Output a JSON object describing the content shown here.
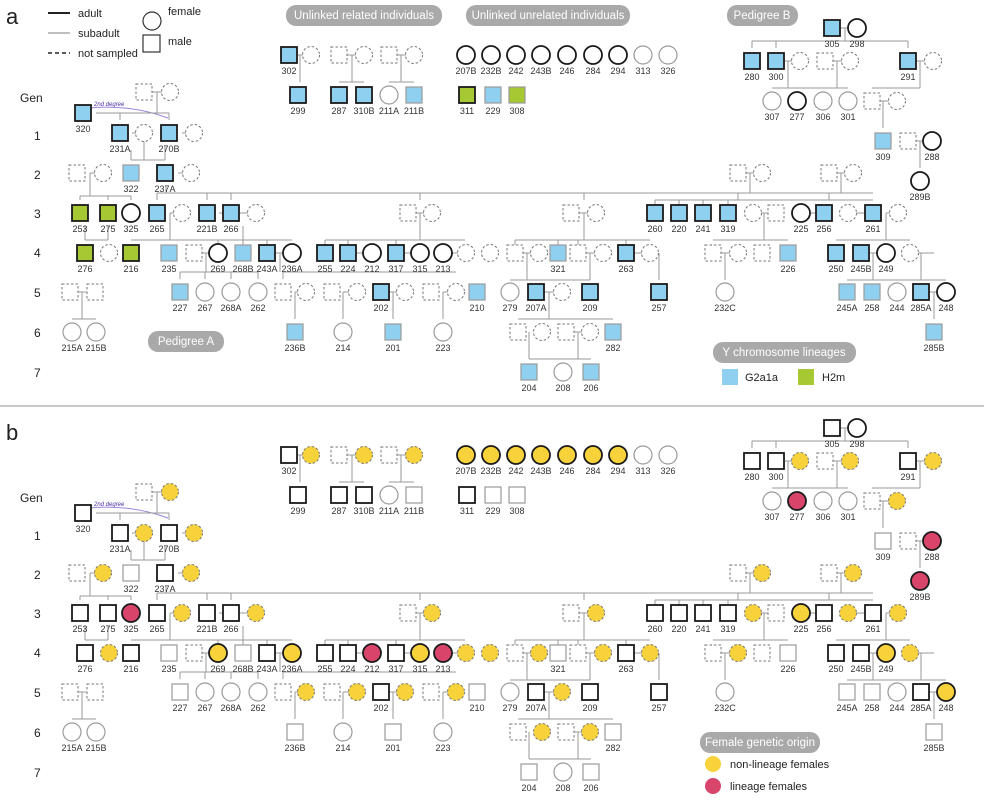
{
  "panels": [
    {
      "letter": "a",
      "legend_lines": [
        {
          "label": "adult"
        },
        {
          "label": "subadult"
        },
        {
          "label": "not sampled"
        }
      ],
      "legend_shapes": [
        {
          "label": "female"
        },
        {
          "label": "male"
        }
      ],
      "group_labels": [
        "Unlinked related individuals",
        "Unlinked unrelated individuals",
        "Pedigree B",
        "Pedigree A"
      ],
      "gen_header": "Gen",
      "gen_numbers": [
        "1",
        "2",
        "3",
        "4",
        "5",
        "6",
        "7"
      ],
      "degree_note": "2nd degree",
      "color_legend_title": "Y chromosome lineages",
      "color_legend": [
        {
          "label": "G2a1a",
          "color": "#8fd0f0"
        },
        {
          "label": "H2m",
          "color": "#a6c832"
        }
      ]
    },
    {
      "letter": "b",
      "gen_header": "Gen",
      "gen_numbers": [
        "1",
        "2",
        "3",
        "4",
        "5",
        "6",
        "7"
      ],
      "degree_note": "2nd degree",
      "color_legend_title": "Female genetic origin",
      "color_legend": [
        {
          "label": "non-lineage females",
          "color": "#f8d23a"
        },
        {
          "label": "lineage females",
          "color": "#d9456a"
        }
      ]
    }
  ],
  "colors": {
    "blue_male": "#8fd0f0",
    "green_male": "#a6c832",
    "yellow_female": "#f8d23a",
    "red_female": "#d9456a",
    "pill_bg": "#a9a9a9",
    "divider": "#c8c8c8"
  },
  "individuals": [
    {
      "id": "320",
      "sex": "M",
      "s": "A",
      "fa": "B",
      "fb": "N"
    },
    {
      "id": "231A",
      "sex": "M",
      "s": "A",
      "fa": "B",
      "fb": "N"
    },
    {
      "id": "270B",
      "sex": "M",
      "s": "A",
      "fa": "B",
      "fb": "N"
    },
    {
      "id": "322",
      "sex": "M",
      "s": "S",
      "fa": "B",
      "fb": "N"
    },
    {
      "id": "237A",
      "sex": "M",
      "s": "A",
      "fa": "B",
      "fb": "N"
    },
    {
      "id": "253",
      "sex": "M",
      "s": "A",
      "fa": "G",
      "fb": "N"
    },
    {
      "id": "275",
      "sex": "M",
      "s": "A",
      "fa": "G",
      "fb": "N"
    },
    {
      "id": "325",
      "sex": "F",
      "s": "A",
      "fa": "N",
      "fb": "R"
    },
    {
      "id": "265",
      "sex": "M",
      "s": "A",
      "fa": "B",
      "fb": "N"
    },
    {
      "id": "221B",
      "sex": "M",
      "s": "A",
      "fa": "B",
      "fb": "N"
    },
    {
      "id": "266",
      "sex": "M",
      "s": "A",
      "fa": "B",
      "fb": "N"
    },
    {
      "id": "276",
      "sex": "M",
      "s": "A",
      "fa": "G",
      "fb": "N"
    },
    {
      "id": "216",
      "sex": "M",
      "s": "A",
      "fa": "G",
      "fb": "N"
    },
    {
      "id": "235",
      "sex": "M",
      "s": "S",
      "fa": "B",
      "fb": "N"
    },
    {
      "id": "269",
      "sex": "F",
      "s": "A",
      "fa": "N",
      "fb": "Y"
    },
    {
      "id": "268B",
      "sex": "M",
      "s": "S",
      "fa": "B",
      "fb": "N"
    },
    {
      "id": "243A",
      "sex": "M",
      "s": "A",
      "fa": "B",
      "fb": "N"
    },
    {
      "id": "236A",
      "sex": "F",
      "s": "A",
      "fa": "N",
      "fb": "Y"
    },
    {
      "id": "255",
      "sex": "M",
      "s": "A",
      "fa": "B",
      "fb": "N"
    },
    {
      "id": "224",
      "sex": "M",
      "s": "A",
      "fa": "B",
      "fb": "N"
    },
    {
      "id": "212",
      "sex": "F",
      "s": "A",
      "fa": "N",
      "fb": "R"
    },
    {
      "id": "317",
      "sex": "M",
      "s": "A",
      "fa": "B",
      "fb": "N"
    },
    {
      "id": "315",
      "sex": "F",
      "s": "A",
      "fa": "N",
      "fb": "Y"
    },
    {
      "id": "213",
      "sex": "F",
      "s": "A",
      "fa": "N",
      "fb": "R"
    },
    {
      "id": "227",
      "sex": "M",
      "s": "S",
      "fa": "B",
      "fb": "N"
    },
    {
      "id": "267",
      "sex": "F",
      "s": "S",
      "fa": "N",
      "fb": "N"
    },
    {
      "id": "268A",
      "sex": "F",
      "s": "S",
      "fa": "N",
      "fb": "N"
    },
    {
      "id": "262",
      "sex": "F",
      "s": "S",
      "fa": "N",
      "fb": "N"
    },
    {
      "id": "202",
      "sex": "M",
      "s": "A",
      "fa": "B",
      "fb": "N"
    },
    {
      "id": "210",
      "sex": "M",
      "s": "S",
      "fa": "B",
      "fb": "N"
    },
    {
      "id": "215A",
      "sex": "F",
      "s": "S",
      "fa": "N",
      "fb": "N"
    },
    {
      "id": "215B",
      "sex": "F",
      "s": "S",
      "fa": "N",
      "fb": "N"
    },
    {
      "id": "236B",
      "sex": "M",
      "s": "S",
      "fa": "B",
      "fb": "N"
    },
    {
      "id": "214",
      "sex": "F",
      "s": "S",
      "fa": "N",
      "fb": "N"
    },
    {
      "id": "201",
      "sex": "M",
      "s": "S",
      "fa": "B",
      "fb": "N"
    },
    {
      "id": "223",
      "sex": "F",
      "s": "S",
      "fa": "N",
      "fb": "N"
    },
    {
      "id": "321",
      "sex": "M",
      "s": "S",
      "fa": "B",
      "fb": "N"
    },
    {
      "id": "263",
      "sex": "M",
      "s": "A",
      "fa": "B",
      "fb": "N"
    },
    {
      "id": "279",
      "sex": "F",
      "s": "S",
      "fa": "N",
      "fb": "N"
    },
    {
      "id": "207A",
      "sex": "M",
      "s": "A",
      "fa": "B",
      "fb": "N"
    },
    {
      "id": "209",
      "sex": "M",
      "s": "A",
      "fa": "B",
      "fb": "N"
    },
    {
      "id": "257",
      "sex": "M",
      "s": "A",
      "fa": "B",
      "fb": "N"
    },
    {
      "id": "282",
      "sex": "M",
      "s": "S",
      "fa": "B",
      "fb": "N"
    },
    {
      "id": "204",
      "sex": "M",
      "s": "S",
      "fa": "B",
      "fb": "N"
    },
    {
      "id": "208",
      "sex": "F",
      "s": "S",
      "fa": "N",
      "fb": "N"
    },
    {
      "id": "206",
      "sex": "M",
      "s": "S",
      "fa": "B",
      "fb": "N"
    },
    {
      "id": "260",
      "sex": "M",
      "s": "A",
      "fa": "B",
      "fb": "N"
    },
    {
      "id": "220",
      "sex": "M",
      "s": "A",
      "fa": "B",
      "fb": "N"
    },
    {
      "id": "241",
      "sex": "M",
      "s": "A",
      "fa": "B",
      "fb": "N"
    },
    {
      "id": "319",
      "sex": "M",
      "s": "A",
      "fa": "B",
      "fb": "N"
    },
    {
      "id": "225",
      "sex": "F",
      "s": "A",
      "fa": "N",
      "fb": "Y"
    },
    {
      "id": "256",
      "sex": "M",
      "s": "A",
      "fa": "B",
      "fb": "N"
    },
    {
      "id": "261",
      "sex": "M",
      "s": "A",
      "fa": "B",
      "fb": "N"
    },
    {
      "id": "226",
      "sex": "M",
      "s": "S",
      "fa": "B",
      "fb": "N"
    },
    {
      "id": "232C",
      "sex": "F",
      "s": "S",
      "fa": "N",
      "fb": "N"
    },
    {
      "id": "250",
      "sex": "M",
      "s": "A",
      "fa": "B",
      "fb": "N"
    },
    {
      "id": "245B",
      "sex": "M",
      "s": "A",
      "fa": "B",
      "fb": "N"
    },
    {
      "id": "249",
      "sex": "F",
      "s": "A",
      "fa": "N",
      "fb": "Y"
    },
    {
      "id": "245A",
      "sex": "M",
      "s": "S",
      "fa": "B",
      "fb": "N"
    },
    {
      "id": "258",
      "sex": "M",
      "s": "S",
      "fa": "B",
      "fb": "N"
    },
    {
      "id": "244",
      "sex": "F",
      "s": "S",
      "fa": "N",
      "fb": "N"
    },
    {
      "id": "285A",
      "sex": "M",
      "s": "A",
      "fa": "B",
      "fb": "N"
    },
    {
      "id": "248",
      "sex": "F",
      "s": "A",
      "fa": "N",
      "fb": "Y"
    },
    {
      "id": "285B",
      "sex": "M",
      "s": "S",
      "fa": "B",
      "fb": "N"
    },
    {
      "id": "302",
      "sex": "M",
      "s": "A",
      "fa": "B",
      "fb": "N"
    },
    {
      "id": "299",
      "sex": "M",
      "s": "A",
      "fa": "B",
      "fb": "N"
    },
    {
      "id": "287",
      "sex": "M",
      "s": "A",
      "fa": "B",
      "fb": "N"
    },
    {
      "id": "310B",
      "sex": "M",
      "s": "A",
      "fa": "B",
      "fb": "N"
    },
    {
      "id": "211A",
      "sex": "F",
      "s": "S",
      "fa": "N",
      "fb": "N"
    },
    {
      "id": "211B",
      "sex": "M",
      "s": "S",
      "fa": "B",
      "fb": "N"
    },
    {
      "id": "207B",
      "sex": "F",
      "s": "A",
      "fa": "N",
      "fb": "Y"
    },
    {
      "id": "232B",
      "sex": "F",
      "s": "A",
      "fa": "N",
      "fb": "Y"
    },
    {
      "id": "242",
      "sex": "F",
      "s": "A",
      "fa": "N",
      "fb": "Y"
    },
    {
      "id": "243B",
      "sex": "F",
      "s": "A",
      "fa": "N",
      "fb": "Y"
    },
    {
      "id": "246",
      "sex": "F",
      "s": "A",
      "fa": "N",
      "fb": "Y"
    },
    {
      "id": "284",
      "sex": "F",
      "s": "A",
      "fa": "N",
      "fb": "Y"
    },
    {
      "id": "294",
      "sex": "F",
      "s": "A",
      "fa": "N",
      "fb": "Y"
    },
    {
      "id": "313",
      "sex": "F",
      "s": "S",
      "fa": "N",
      "fb": "N"
    },
    {
      "id": "326",
      "sex": "F",
      "s": "S",
      "fa": "N",
      "fb": "N"
    },
    {
      "id": "311",
      "sex": "M",
      "s": "A",
      "fa": "G",
      "fb": "N"
    },
    {
      "id": "229",
      "sex": "M",
      "s": "S",
      "fa": "B",
      "fb": "N"
    },
    {
      "id": "308",
      "sex": "M",
      "s": "S",
      "fa": "G",
      "fb": "N"
    },
    {
      "id": "305",
      "sex": "M",
      "s": "A",
      "fa": "B",
      "fb": "N"
    },
    {
      "id": "298",
      "sex": "F",
      "s": "A",
      "fa": "N",
      "fb": "N"
    },
    {
      "id": "280",
      "sex": "M",
      "s": "A",
      "fa": "B",
      "fb": "N"
    },
    {
      "id": "300",
      "sex": "M",
      "s": "A",
      "fa": "B",
      "fb": "N"
    },
    {
      "id": "291",
      "sex": "M",
      "s": "A",
      "fa": "B",
      "fb": "N"
    },
    {
      "id": "307",
      "sex": "F",
      "s": "S",
      "fa": "N",
      "fb": "N"
    },
    {
      "id": "277",
      "sex": "F",
      "s": "A",
      "fa": "N",
      "fb": "R"
    },
    {
      "id": "306",
      "sex": "F",
      "s": "S",
      "fa": "N",
      "fb": "N"
    },
    {
      "id": "301",
      "sex": "F",
      "s": "S",
      "fa": "N",
      "fb": "N"
    },
    {
      "id": "309",
      "sex": "M",
      "s": "S",
      "fa": "B",
      "fb": "N"
    },
    {
      "id": "288",
      "sex": "F",
      "s": "A",
      "fa": "N",
      "fb": "R"
    },
    {
      "id": "289B",
      "sex": "F",
      "s": "A",
      "fa": "N",
      "fb": "R"
    }
  ]
}
